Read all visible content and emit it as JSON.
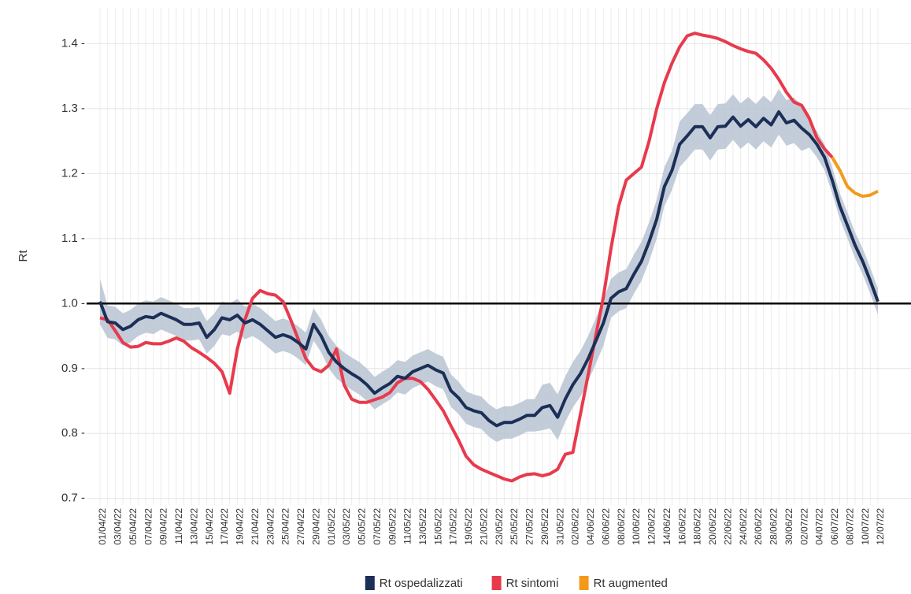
{
  "chart_data": {
    "type": "line",
    "y_label": "Rt",
    "categories": [
      "01/04/22",
      null,
      "03/04/22",
      null,
      "05/04/22",
      null,
      "07/04/22",
      null,
      "09/04/22",
      null,
      "11/04/22",
      null,
      "13/04/22",
      null,
      "15/04/22",
      null,
      "17/04/22",
      null,
      "19/04/22",
      null,
      "21/04/22",
      null,
      "23/04/22",
      null,
      "25/04/22",
      null,
      "27/04/22",
      null,
      "29/04/22",
      null,
      "01/05/22",
      null,
      "03/05/22",
      null,
      "05/05/22",
      null,
      "07/05/22",
      null,
      "09/05/22",
      null,
      "11/05/22",
      null,
      "13/05/22",
      null,
      "15/05/22",
      null,
      "17/05/22",
      null,
      "19/05/22",
      null,
      "21/05/22",
      null,
      "23/05/22",
      null,
      "25/05/22",
      null,
      "27/05/22",
      null,
      "29/05/22",
      null,
      "31/05/22",
      null,
      "02/06/22",
      null,
      "04/06/22",
      null,
      "06/06/22",
      null,
      "08/06/22",
      null,
      "10/06/22",
      null,
      "12/06/22",
      null,
      "14/06/22",
      null,
      "16/06/22",
      null,
      "18/06/22",
      null,
      "20/06/22",
      null,
      "22/06/22",
      null,
      "24/06/22",
      null,
      "26/06/22",
      null,
      "28/06/22",
      null,
      "30/06/22",
      null,
      "02/07/22",
      null,
      "04/07/22",
      null,
      "06/07/22",
      null,
      "08/07/22",
      null,
      "10/07/22",
      null,
      "12/07/22"
    ],
    "series": [
      {
        "name": "Rt ospedalizzati",
        "color": "#1b2f57",
        "band_color": "#b9c3d2",
        "values": [
          1.003,
          0.972,
          0.97,
          0.96,
          0.965,
          0.975,
          0.98,
          0.978,
          0.985,
          0.98,
          0.975,
          0.968,
          0.968,
          0.97,
          0.948,
          0.96,
          0.978,
          0.975,
          0.982,
          0.97,
          0.975,
          0.968,
          0.958,
          0.948,
          0.952,
          0.948,
          0.94,
          0.93,
          0.968,
          0.95,
          0.925,
          0.91,
          0.9,
          0.892,
          0.885,
          0.875,
          0.862,
          0.87,
          0.877,
          0.888,
          0.885,
          0.895,
          0.9,
          0.905,
          0.898,
          0.893,
          0.866,
          0.855,
          0.84,
          0.835,
          0.832,
          0.82,
          0.812,
          0.817,
          0.817,
          0.822,
          0.828,
          0.828,
          0.84,
          0.843,
          0.825,
          0.853,
          0.875,
          0.892,
          0.915,
          0.942,
          0.97,
          1.008,
          1.018,
          1.023,
          1.045,
          1.065,
          1.095,
          1.13,
          1.18,
          1.205,
          1.245,
          1.258,
          1.272,
          1.272,
          1.255,
          1.272,
          1.273,
          1.287,
          1.273,
          1.283,
          1.272,
          1.285,
          1.275,
          1.295,
          1.278,
          1.282,
          1.27,
          1.26,
          1.245,
          1.225,
          1.19,
          1.15,
          1.12,
          1.09,
          1.065,
          1.035,
          1.003
        ],
        "lower": [
          0.968,
          0.947,
          0.945,
          0.935,
          0.94,
          0.95,
          0.955,
          0.953,
          0.96,
          0.955,
          0.95,
          0.943,
          0.943,
          0.945,
          0.923,
          0.935,
          0.953,
          0.95,
          0.957,
          0.945,
          0.95,
          0.943,
          0.933,
          0.923,
          0.927,
          0.923,
          0.915,
          0.905,
          0.943,
          0.925,
          0.9,
          0.885,
          0.875,
          0.867,
          0.86,
          0.85,
          0.837,
          0.845,
          0.852,
          0.863,
          0.86,
          0.87,
          0.875,
          0.88,
          0.873,
          0.868,
          0.841,
          0.83,
          0.815,
          0.81,
          0.807,
          0.795,
          0.787,
          0.792,
          0.792,
          0.797,
          0.803,
          0.803,
          0.805,
          0.808,
          0.79,
          0.818,
          0.84,
          0.857,
          0.88,
          0.907,
          0.935,
          0.978,
          0.988,
          0.993,
          1.015,
          1.035,
          1.065,
          1.1,
          1.15,
          1.175,
          1.21,
          1.223,
          1.237,
          1.237,
          1.22,
          1.237,
          1.238,
          1.252,
          1.238,
          1.248,
          1.237,
          1.25,
          1.24,
          1.26,
          1.243,
          1.247,
          1.235,
          1.24,
          1.225,
          1.205,
          1.17,
          1.13,
          1.1,
          1.07,
          1.045,
          1.015,
          0.983
        ],
        "upper": [
          1.038,
          0.997,
          0.995,
          0.985,
          0.99,
          1.0,
          1.005,
          1.003,
          1.01,
          1.005,
          1.0,
          0.993,
          0.993,
          0.995,
          0.973,
          0.985,
          1.003,
          1.0,
          1.007,
          0.995,
          1.0,
          0.993,
          0.983,
          0.973,
          0.977,
          0.973,
          0.965,
          0.955,
          0.993,
          0.975,
          0.95,
          0.935,
          0.925,
          0.917,
          0.91,
          0.9,
          0.887,
          0.895,
          0.902,
          0.913,
          0.91,
          0.92,
          0.925,
          0.93,
          0.923,
          0.918,
          0.891,
          0.88,
          0.865,
          0.86,
          0.857,
          0.845,
          0.837,
          0.842,
          0.842,
          0.847,
          0.853,
          0.853,
          0.875,
          0.878,
          0.86,
          0.888,
          0.91,
          0.927,
          0.95,
          0.977,
          1.005,
          1.038,
          1.048,
          1.053,
          1.075,
          1.095,
          1.125,
          1.16,
          1.21,
          1.235,
          1.28,
          1.293,
          1.307,
          1.307,
          1.29,
          1.307,
          1.308,
          1.322,
          1.308,
          1.318,
          1.307,
          1.32,
          1.31,
          1.33,
          1.313,
          1.317,
          1.305,
          1.28,
          1.265,
          1.245,
          1.21,
          1.17,
          1.14,
          1.11,
          1.085,
          1.055,
          1.023
        ]
      },
      {
        "name": "Rt sintomi",
        "color": "#e83a4d",
        "values": [
          0.978,
          0.975,
          0.958,
          0.94,
          0.933,
          0.934,
          0.94,
          0.938,
          0.938,
          0.942,
          0.947,
          0.942,
          0.932,
          0.925,
          0.917,
          0.908,
          0.895,
          0.862,
          0.93,
          0.975,
          1.008,
          1.02,
          1.015,
          1.013,
          1.003,
          0.975,
          0.945,
          0.915,
          0.9,
          0.895,
          0.905,
          0.93,
          0.875,
          0.853,
          0.848,
          0.848,
          0.852,
          0.856,
          0.863,
          0.878,
          0.885,
          0.885,
          0.88,
          0.868,
          0.852,
          0.835,
          0.812,
          0.79,
          0.765,
          0.752,
          0.745,
          0.74,
          0.735,
          0.73,
          0.727,
          0.733,
          0.737,
          0.738,
          0.735,
          0.738,
          0.745,
          0.768,
          0.771,
          0.83,
          0.89,
          0.95,
          1.01,
          1.085,
          1.15,
          1.19,
          1.2,
          1.21,
          1.25,
          1.3,
          1.34,
          1.37,
          1.395,
          1.412,
          1.416,
          1.413,
          1.411,
          1.408,
          1.403,
          1.397,
          1.392,
          1.388,
          1.385,
          1.375,
          1.362,
          1.345,
          1.325,
          1.31,
          1.305,
          1.285,
          1.255,
          1.238,
          1.225,
          null,
          null,
          null,
          null,
          null,
          null
        ]
      },
      {
        "name": "Rt augmented",
        "color": "#f39a1c",
        "values": [
          null,
          null,
          null,
          null,
          null,
          null,
          null,
          null,
          null,
          null,
          null,
          null,
          null,
          null,
          null,
          null,
          null,
          null,
          null,
          null,
          null,
          null,
          null,
          null,
          null,
          null,
          null,
          null,
          null,
          null,
          null,
          null,
          null,
          null,
          null,
          null,
          null,
          null,
          null,
          null,
          null,
          null,
          null,
          null,
          null,
          null,
          null,
          null,
          null,
          null,
          null,
          null,
          null,
          null,
          null,
          null,
          null,
          null,
          null,
          null,
          null,
          null,
          null,
          null,
          null,
          null,
          null,
          null,
          null,
          null,
          null,
          null,
          null,
          null,
          null,
          null,
          null,
          null,
          null,
          null,
          null,
          null,
          null,
          null,
          null,
          null,
          null,
          null,
          null,
          null,
          null,
          null,
          null,
          null,
          null,
          null,
          1.225,
          1.205,
          1.18,
          1.17,
          1.165,
          1.167,
          1.173
        ]
      }
    ],
    "hline": 1,
    "ylim": [
      0.69,
      1.455
    ],
    "yticks": [
      {
        "value": 0.7,
        "label": "0.7 -"
      },
      {
        "value": 0.8,
        "label": "0.8 -"
      },
      {
        "value": 0.9,
        "label": "0.9 -"
      },
      {
        "value": 1.0,
        "label": "1.0 -"
      },
      {
        "value": 1.1,
        "label": "1.1 -"
      },
      {
        "value": 1.2,
        "label": "1.2 -"
      },
      {
        "value": 1.3,
        "label": "1.3 -"
      },
      {
        "value": 1.4,
        "label": "1.4 -"
      }
    ],
    "grid": true,
    "legend": "bottom"
  }
}
